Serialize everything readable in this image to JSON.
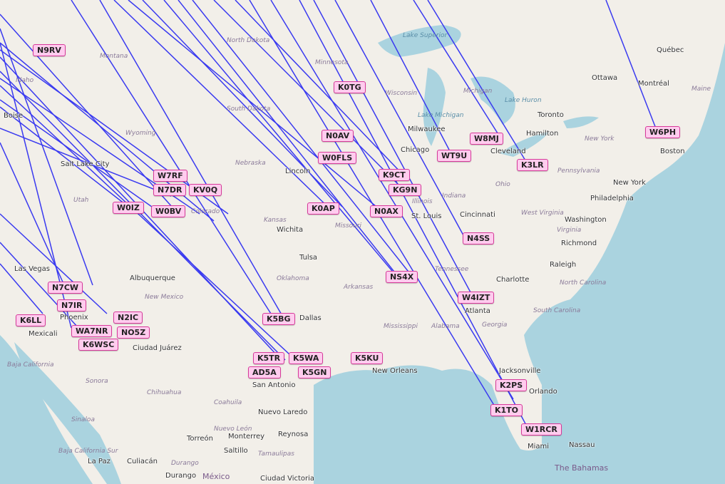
{
  "colors": {
    "land": "#f2efe9",
    "water": "#aad3df",
    "path": "#3a3af0",
    "label_bg": "#ffccee",
    "label_border": "#d63a9a"
  },
  "callsigns": [
    "N9RV",
    "K0TG",
    "N0AV",
    "W0FLS",
    "K9CT",
    "KG9N",
    "WT9U",
    "W8MJ",
    "K3LR",
    "W6PH",
    "W7RF",
    "N7DR",
    "KV0Q",
    "W0IZ",
    "W0BV",
    "K0AP",
    "N0AX",
    "N4SS",
    "NS4X",
    "W4IZT",
    "K5BG",
    "K5KU",
    "K2PS",
    "K1TO",
    "W1RCR",
    "N7CW",
    "N7IR",
    "K6LL",
    "WA7NR",
    "K6WSC",
    "N2IC",
    "NO5Z",
    "K5TR",
    "AD5A",
    "K5WA",
    "K5GN"
  ],
  "cities": [
    "Boise",
    "Salt Lake City",
    "Las Vegas",
    "Phoenix",
    "Mexicali",
    "Albuquerque",
    "Ciudad Juárez",
    "Lincoln",
    "Wichita",
    "Tulsa",
    "Dallas",
    "San Antonio",
    "Nuevo Laredo",
    "Monterrey",
    "Reynosa",
    "Torreón",
    "Saltillo",
    "Durango",
    "Culiacán",
    "La Paz",
    "Ciudad Victoria",
    "New Orleans",
    "Jacksonville",
    "Orlando",
    "Miami",
    "Nassau",
    "Atlanta",
    "Charlotte",
    "Raleigh",
    "Richmond",
    "Washington",
    "Philadelphia",
    "New York",
    "Boston",
    "Montréal",
    "Ottawa",
    "Québec",
    "Toronto",
    "Hamilton",
    "Milwaukee",
    "Chicago",
    "Cleveland",
    "Cincinnati",
    "St. Louis"
  ],
  "regions": [
    "Montana",
    "Idaho",
    "Wyoming",
    "South Dakota",
    "North Dakota",
    "Nebraska",
    "Utah",
    "Colorado",
    "Kansas",
    "Oklahoma",
    "Missouri",
    "Arkansas",
    "Minnesota",
    "Wisconsin",
    "Illinois",
    "Indiana",
    "Ohio",
    "Michigan",
    "Pennsylvania",
    "New Mexico",
    "Tennessee",
    "Mississippi",
    "Alabama",
    "Georgia",
    "North Carolina",
    "South Carolina",
    "Virginia",
    "West Virginia",
    "New York",
    "Maine",
    "Baja California",
    "Sonora",
    "Chihuahua",
    "Coahuila",
    "Tamaulipas",
    "Sinaloa",
    "Durango",
    "Baja California Sur",
    "Nuevo León"
  ],
  "water": [
    "Lake Superior",
    "Lake Michigan",
    "Lake Huron"
  ],
  "countries": [
    "México",
    "The Bahamas"
  ]
}
